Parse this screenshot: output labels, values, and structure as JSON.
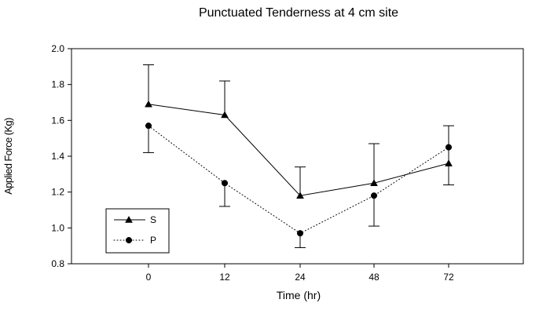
{
  "chart_data": {
    "type": "line",
    "title": "Punctuated Tenderness at 4 cm site",
    "xlabel": "Time (hr)",
    "ylabel": "Applied Force (Kg)",
    "categories": [
      "0",
      "12",
      "24",
      "48",
      "72"
    ],
    "ylim": [
      0.8,
      2.0
    ],
    "yticks": [
      0.8,
      1.0,
      1.2,
      1.4,
      1.6,
      1.8,
      2.0
    ],
    "ytick_labels": [
      "0.8",
      "1.0",
      "1.2",
      "1.4",
      "1.6",
      "1.8",
      "2.0"
    ],
    "grid": false,
    "legend_position": "bottom-left",
    "series": [
      {
        "name": "S",
        "marker": "triangle",
        "line_style": "solid",
        "values": [
          1.69,
          1.63,
          1.18,
          1.25,
          1.36
        ],
        "error_upper": [
          1.91,
          1.82,
          1.34,
          1.47,
          1.57
        ],
        "error_lower": [
          null,
          null,
          null,
          null,
          1.24
        ]
      },
      {
        "name": "P",
        "marker": "circle",
        "line_style": "dotted",
        "values": [
          1.57,
          1.25,
          0.97,
          1.18,
          1.45
        ],
        "error_upper": [
          null,
          null,
          null,
          null,
          null
        ],
        "error_lower": [
          1.42,
          1.12,
          0.89,
          1.01,
          null
        ]
      }
    ]
  }
}
